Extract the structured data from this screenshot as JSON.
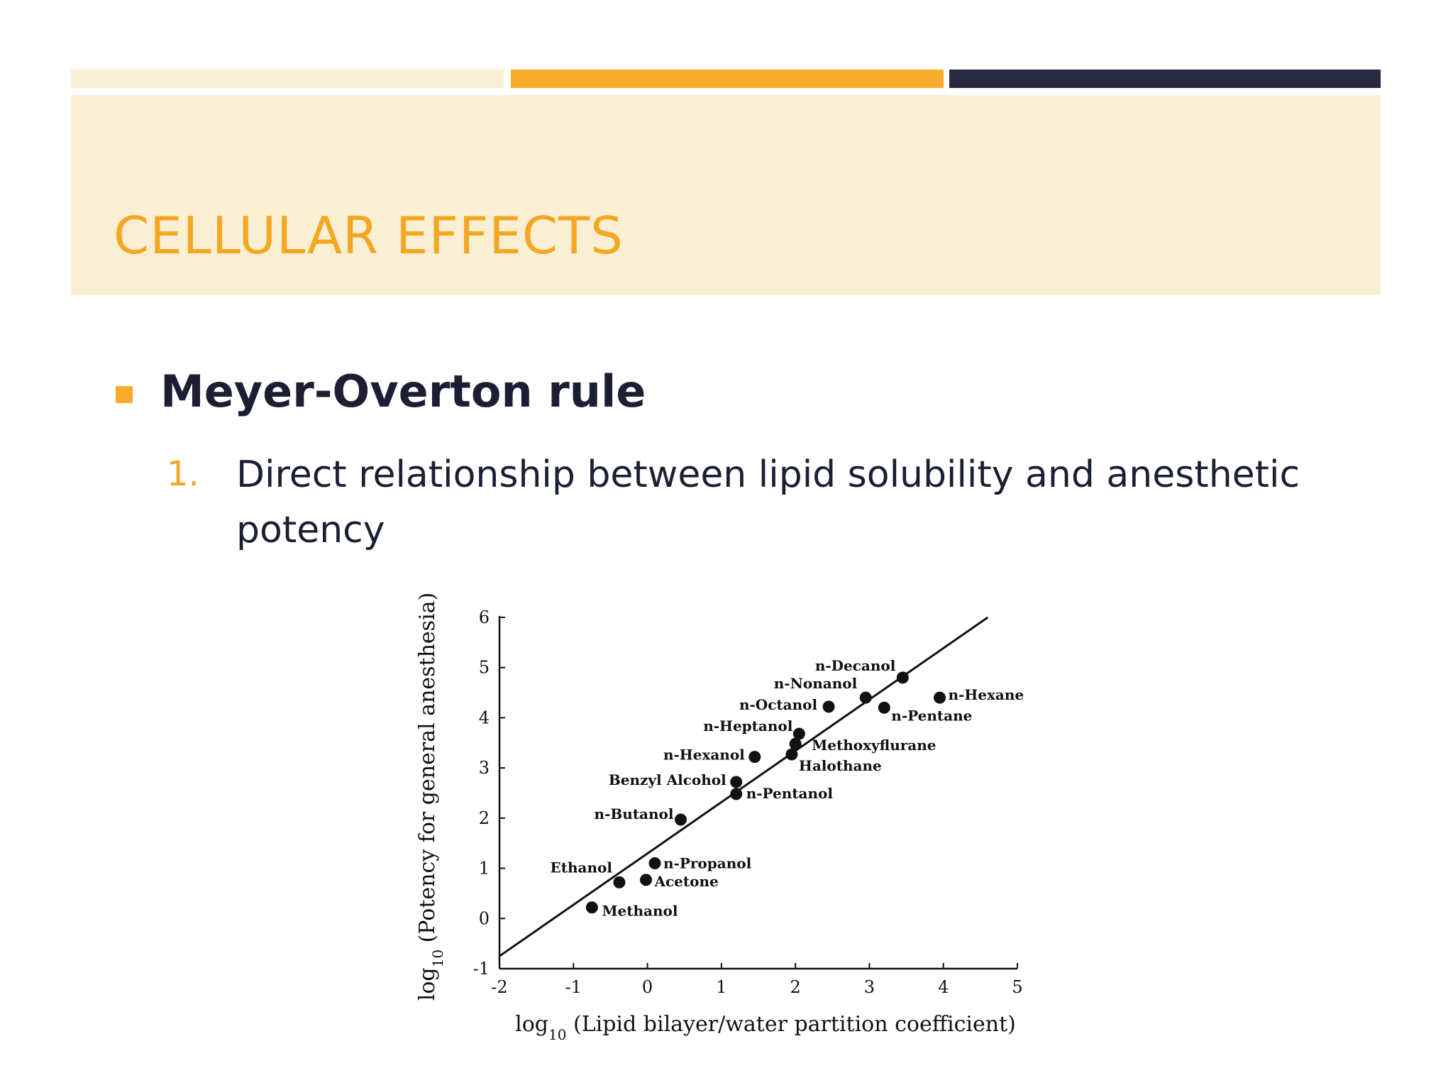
{
  "slide": {
    "title": "CELLULAR EFFECTS",
    "bullet": "Meyer-Overton rule",
    "sub_number": "1.",
    "sub_text": "Direct relationship between lipid solubility and anesthetic potency"
  },
  "colors": {
    "accent": "#f9ab2c",
    "title": "#f5a623",
    "dark": "#272a3e",
    "band": "#f9f0d3"
  },
  "chart_data": {
    "type": "scatter",
    "xlabel": "log10 (Lipid bilayer/water partition coefficient)",
    "ylabel": "log10 (Potency for general anesthesia)",
    "xlim": [
      -2,
      5
    ],
    "ylim": [
      -1,
      6
    ],
    "x_ticks": [
      "-2",
      "-1",
      "0",
      "1",
      "2",
      "3",
      "4",
      "5"
    ],
    "y_ticks": [
      "-1",
      "0",
      "1",
      "2",
      "3",
      "4",
      "5",
      "6"
    ],
    "fit_line": {
      "x": [
        -2,
        4.6
      ],
      "y": [
        -0.75,
        6.0
      ]
    },
    "points": [
      {
        "label": "Methanol",
        "x": -0.75,
        "y": 0.22
      },
      {
        "label": "Ethanol",
        "x": -0.38,
        "y": 0.72
      },
      {
        "label": "Acetone",
        "x": -0.02,
        "y": 0.77
      },
      {
        "label": "n-Propanol",
        "x": 0.1,
        "y": 1.1
      },
      {
        "label": "n-Butanol",
        "x": 0.45,
        "y": 1.97
      },
      {
        "label": "n-Pentanol",
        "x": 1.2,
        "y": 2.48
      },
      {
        "label": "Benzyl Alcohol",
        "x": 1.2,
        "y": 2.72
      },
      {
        "label": "n-Hexanol",
        "x": 1.45,
        "y": 3.22
      },
      {
        "label": "Halothane",
        "x": 1.95,
        "y": 3.27
      },
      {
        "label": "Methoxyflurane",
        "x": 2.0,
        "y": 3.48
      },
      {
        "label": "n-Heptanol",
        "x": 2.05,
        "y": 3.68
      },
      {
        "label": "n-Octanol",
        "x": 2.45,
        "y": 4.22
      },
      {
        "label": "n-Nonanol",
        "x": 2.95,
        "y": 4.4
      },
      {
        "label": "n-Pentane",
        "x": 3.2,
        "y": 4.2
      },
      {
        "label": "n-Decanol",
        "x": 3.45,
        "y": 4.8
      },
      {
        "label": "n-Hexane",
        "x": 3.95,
        "y": 4.4
      }
    ]
  }
}
